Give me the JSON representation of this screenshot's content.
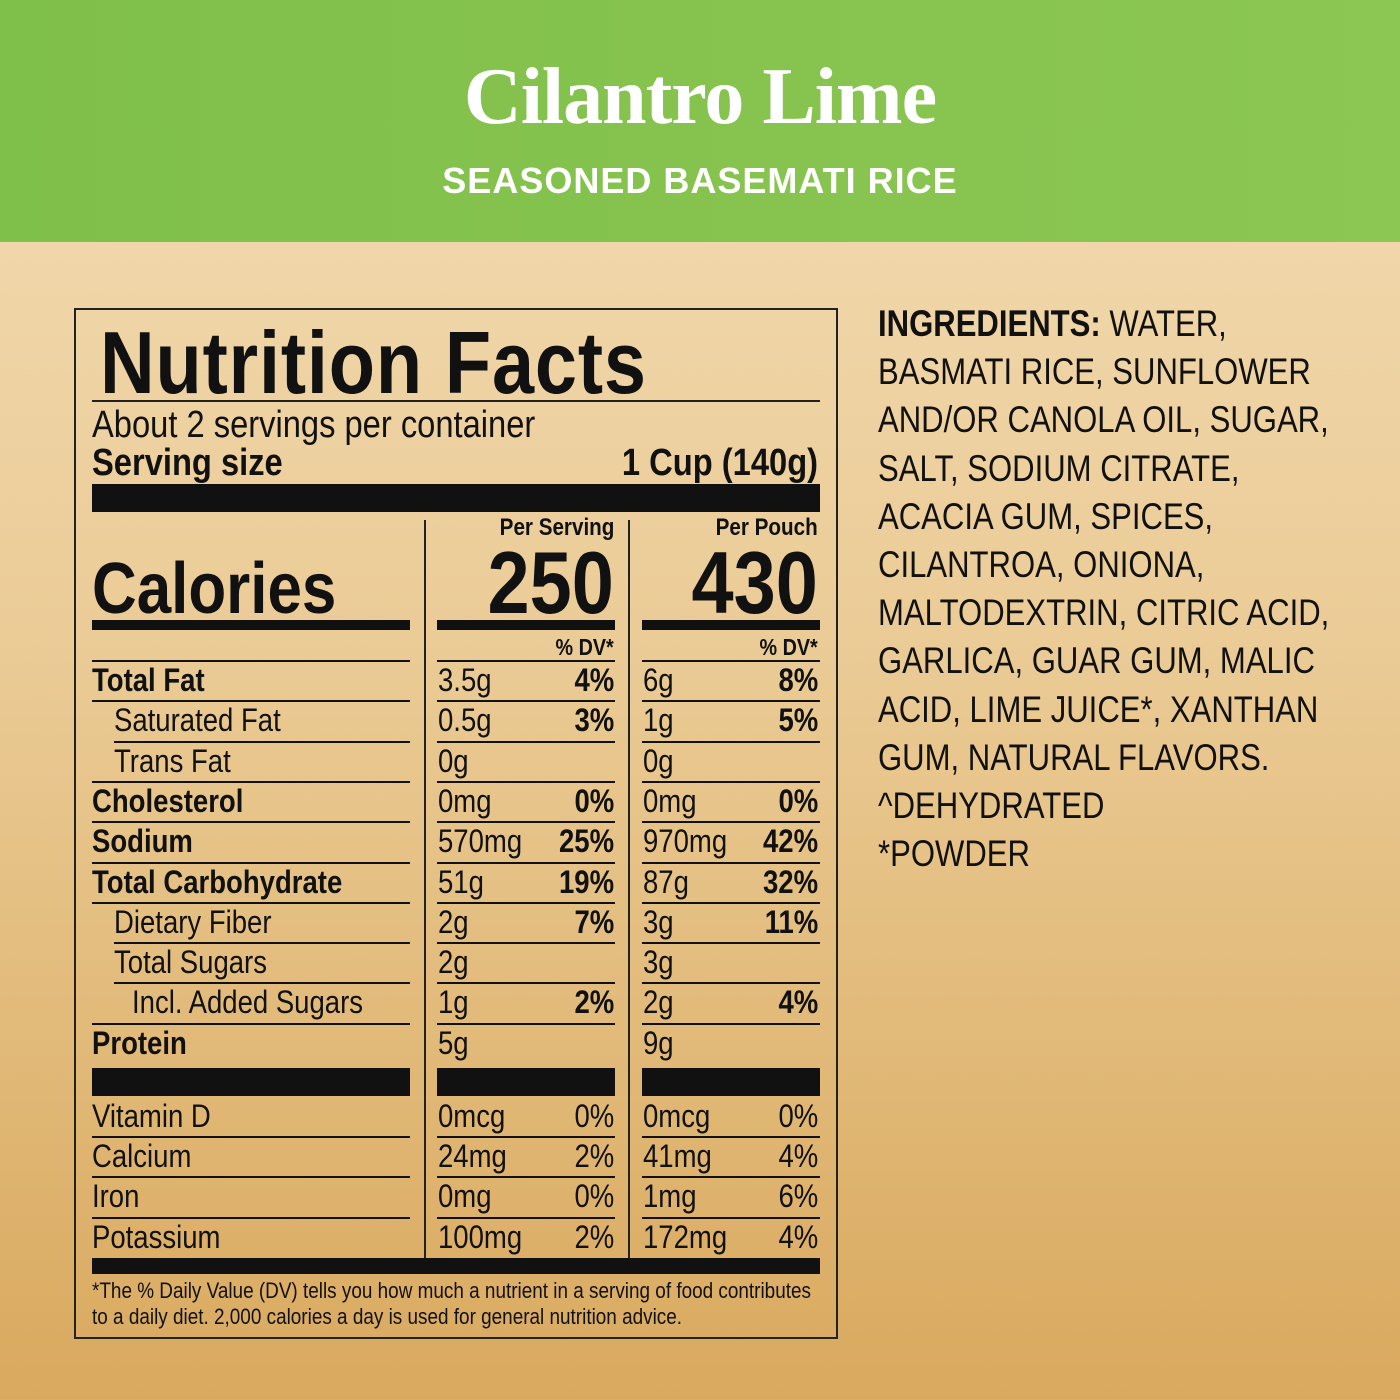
{
  "header": {
    "title": "Cilantro Lime",
    "subtitle": "SEASONED BASEMATI RICE",
    "color": "#86c34c"
  },
  "label": {
    "title": "Nutrition Facts",
    "servings": "About 2 servings per container",
    "serving_size_label": "Serving size",
    "serving_size_value": "1 Cup (140g)",
    "col1_header": "Per Serving",
    "col2_header": "Per Pouch",
    "calories_label": "Calories",
    "calories_serving": "250",
    "calories_pouch": "430",
    "dv_header": "% DV*",
    "nutrients": [
      {
        "name": "Total Fat",
        "bold": true,
        "indent": 0,
        "s_amt": "3.5g",
        "s_dv": "4%",
        "p_amt": "6g",
        "p_dv": "8%"
      },
      {
        "name": "Saturated Fat",
        "bold": false,
        "indent": 1,
        "s_amt": "0.5g",
        "s_dv": "3%",
        "p_amt": "1g",
        "p_dv": "5%"
      },
      {
        "name": "Trans Fat",
        "bold": false,
        "indent": 1,
        "s_amt": "0g",
        "s_dv": "",
        "p_amt": "0g",
        "p_dv": ""
      },
      {
        "name": "Cholesterol",
        "bold": true,
        "indent": 0,
        "s_amt": "0mg",
        "s_dv": "0%",
        "p_amt": "0mg",
        "p_dv": "0%"
      },
      {
        "name": "Sodium",
        "bold": true,
        "indent": 0,
        "s_amt": "570mg",
        "s_dv": "25%",
        "p_amt": "970mg",
        "p_dv": "42%"
      },
      {
        "name": "Total Carbohydrate",
        "bold": true,
        "indent": 0,
        "s_amt": "51g",
        "s_dv": "19%",
        "p_amt": "87g",
        "p_dv": "32%"
      },
      {
        "name": "Dietary Fiber",
        "bold": false,
        "indent": 1,
        "s_amt": "2g",
        "s_dv": "7%",
        "p_amt": "3g",
        "p_dv": "11%"
      },
      {
        "name": "Total Sugars",
        "bold": false,
        "indent": 1,
        "s_amt": "2g",
        "s_dv": "",
        "p_amt": "3g",
        "p_dv": ""
      },
      {
        "name": "Incl. Added Sugars",
        "bold": false,
        "indent": 2,
        "s_amt": "1g",
        "s_dv": "2%",
        "p_amt": "2g",
        "p_dv": "4%"
      },
      {
        "name": "Protein",
        "bold": true,
        "indent": 0,
        "s_amt": "5g",
        "s_dv": "",
        "p_amt": "9g",
        "p_dv": ""
      }
    ],
    "vitamins": [
      {
        "name": "Vitamin D",
        "s_amt": "0mcg",
        "s_dv": "0%",
        "p_amt": "0mcg",
        "p_dv": "0%"
      },
      {
        "name": "Calcium",
        "s_amt": "24mg",
        "s_dv": "2%",
        "p_amt": "41mg",
        "p_dv": "4%"
      },
      {
        "name": "Iron",
        "s_amt": "0mg",
        "s_dv": "0%",
        "p_amt": "1mg",
        "p_dv": "6%"
      },
      {
        "name": "Potassium",
        "s_amt": "100mg",
        "s_dv": "2%",
        "p_amt": "172mg",
        "p_dv": "4%"
      }
    ],
    "footnote_1": "*The % Daily Value (DV) tells you how much a nutrient in a serving of food contributes",
    "footnote_2": "to a daily diet. 2,000 calories a day is used for general nutrition advice."
  },
  "ingredients": {
    "label": "INGREDIENTS:",
    "text": "WATER, BASMATI RICE, SUNFLOWER AND/OR CANOLA OIL, SUGAR, SALT, SODIUM CITRATE, ACACIA GUM, SPICES, CILANTROA, ONIONA, MALTODEXTRIN, CITRIC ACID, GARLICA, GUAR GUM, MALIC ACID, LIME JUICE*, XANTHAN GUM, NATURAL FLAVORS.",
    "note_1": "^DEHYDRATED",
    "note_2": "*POWDER"
  }
}
